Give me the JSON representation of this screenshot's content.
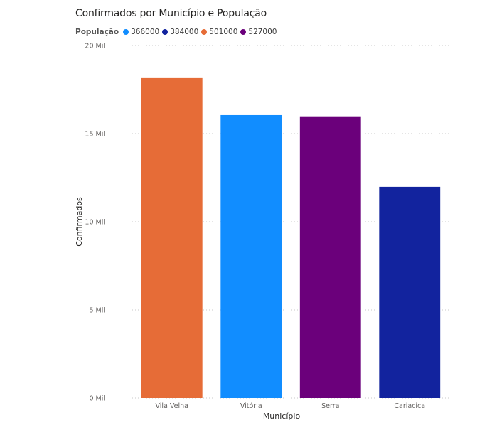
{
  "chart_data": {
    "type": "bar",
    "title": "Confirmados por Município e População",
    "xlabel": "Município",
    "ylabel": "Confirmados",
    "categories": [
      "Vila Velha",
      "Vitória",
      "Serra",
      "Cariacica"
    ],
    "values": [
      18150,
      16050,
      15980,
      11980
    ],
    "bar_colors": [
      "#E66C37",
      "#118DFF",
      "#6B007B",
      "#12239E"
    ],
    "ylim": [
      0,
      20000
    ],
    "y_ticks": [
      {
        "value": 0,
        "label": "0 Mil"
      },
      {
        "value": 5000,
        "label": "5 Mil"
      },
      {
        "value": 10000,
        "label": "10 Mil"
      },
      {
        "value": 15000,
        "label": "15 Mil"
      },
      {
        "value": 20000,
        "label": "20 Mil"
      }
    ],
    "grid": true,
    "legend": {
      "title": "População",
      "placement": "top-left",
      "items": [
        {
          "label": "366000",
          "color": "#118DFF"
        },
        {
          "label": "384000",
          "color": "#12239E"
        },
        {
          "label": "501000",
          "color": "#E66C37"
        },
        {
          "label": "527000",
          "color": "#6B007B"
        }
      ]
    }
  }
}
